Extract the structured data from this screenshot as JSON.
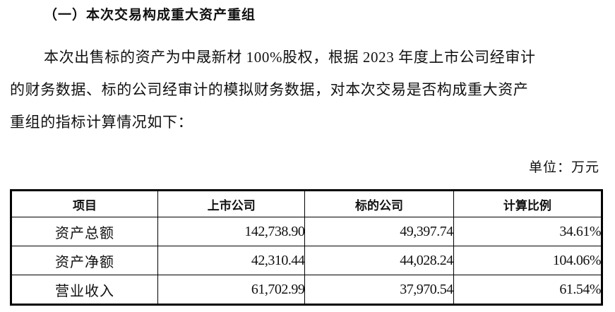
{
  "heading": "（一）本次交易构成重大资产重组",
  "paragraph": [
    "本次出售标的资产为中晟新材 100%股权，根据 2023 年度上市公司经审计",
    "的财务数据、标的公司经审计的模拟财务数据，对本次交易是否构成重大资产",
    "重组的指标计算情况如下："
  ],
  "unit": "单位：万元",
  "table": {
    "headers": [
      "项目",
      "上市公司",
      "标的公司",
      "计算比例"
    ],
    "rows": [
      [
        "资产总额",
        "142,738.90",
        "49,397.74",
        "34.61%"
      ],
      [
        "资产净额",
        "42,310.44",
        "44,028.24",
        "104.06%"
      ],
      [
        "营业收入",
        "61,702.99",
        "37,970.54",
        "61.54%"
      ]
    ]
  }
}
